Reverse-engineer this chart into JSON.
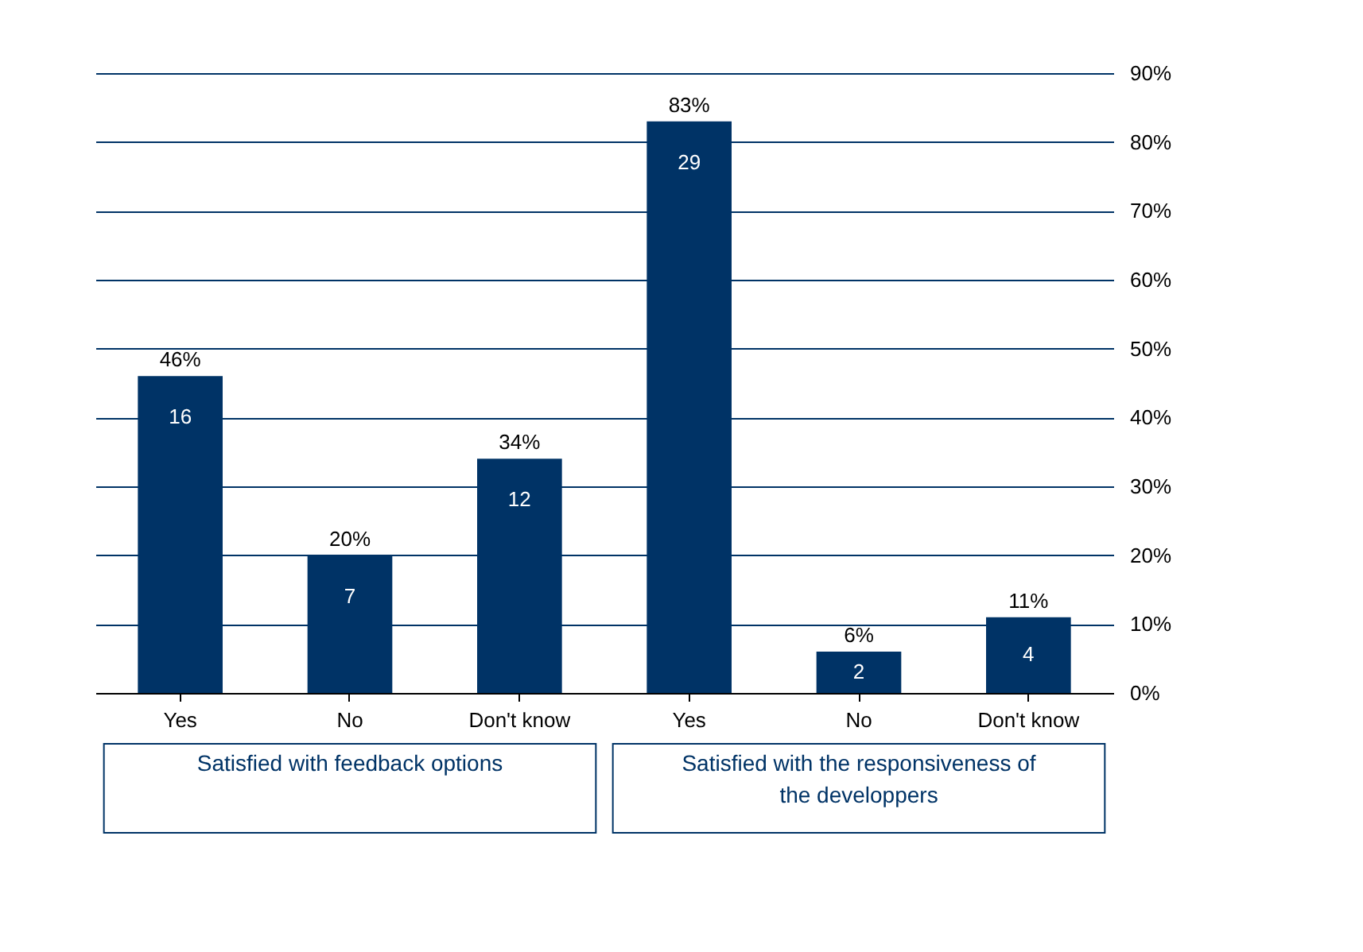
{
  "chart_data": {
    "type": "bar",
    "categories": [
      "Yes",
      "No",
      "Don't know",
      "Yes",
      "No",
      "Don't know"
    ],
    "values": [
      46,
      20,
      34,
      83,
      6,
      11
    ],
    "color": "#003366",
    "value_labels": [
      "46%",
      "20%",
      "34%",
      "83%",
      "6%",
      "11%"
    ],
    "ylim": [
      0,
      90
    ],
    "yticks": [
      {
        "value": 0,
        "label": "0%"
      },
      {
        "value": 10,
        "label": "10%"
      },
      {
        "value": 20,
        "label": "20%"
      },
      {
        "value": 30,
        "label": "30%"
      },
      {
        "value": 40,
        "label": "40%"
      },
      {
        "value": 50,
        "label": "50%"
      },
      {
        "value": 60,
        "label": "60%"
      },
      {
        "value": 70,
        "label": "70%"
      },
      {
        "value": 80,
        "label": "80%"
      },
      {
        "value": 90,
        "label": "90%"
      }
    ],
    "grid": "y",
    "annotations": [
      "Satisfied with feedback options",
      "Satisfied with the responsiveness of the developpers",
      "16",
      "7",
      "12",
      "29",
      "2",
      "4"
    ]
  }
}
